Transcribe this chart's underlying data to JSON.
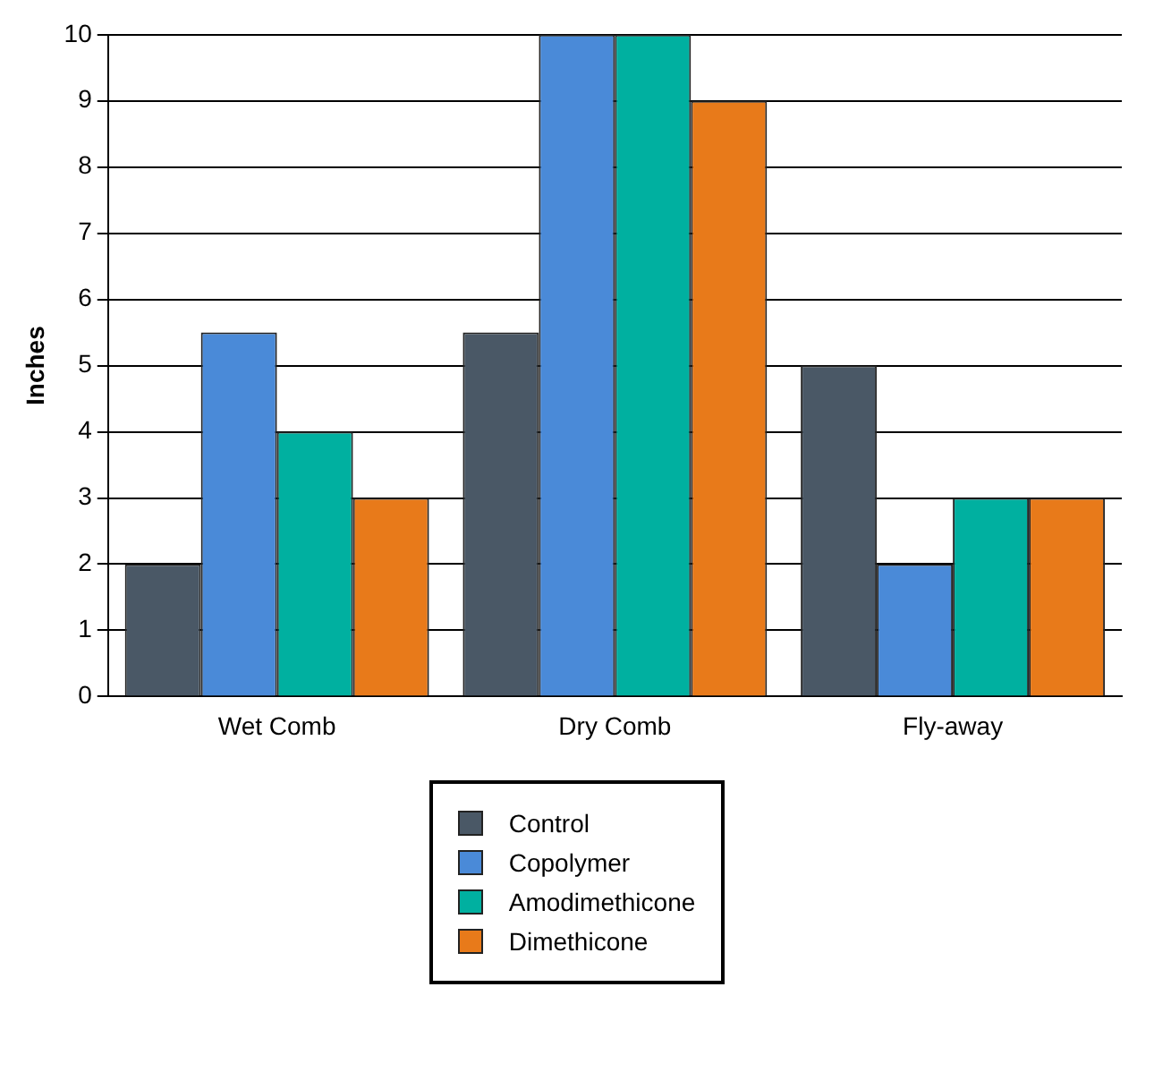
{
  "chart_data": {
    "type": "bar",
    "ylabel": "Inches",
    "categories": [
      "Wet Comb",
      "Dry Comb",
      "Fly-away"
    ],
    "series": [
      {
        "name": "Control",
        "color": "#4a5866",
        "values": [
          2,
          5.5,
          5
        ]
      },
      {
        "name": "Copolymer",
        "color": "#4a8ad8",
        "values": [
          5.5,
          10,
          2
        ]
      },
      {
        "name": "Amodimethicone",
        "color": "#00b0a0",
        "values": [
          4,
          10,
          3
        ]
      },
      {
        "name": "Dimethicone",
        "color": "#e87a1a",
        "values": [
          3,
          9,
          3
        ]
      }
    ],
    "ylim": [
      0,
      10
    ],
    "yticks": [
      0,
      1,
      2,
      3,
      4,
      5,
      6,
      7,
      8,
      9,
      10
    ],
    "grid": "y",
    "legend": "bottom"
  }
}
